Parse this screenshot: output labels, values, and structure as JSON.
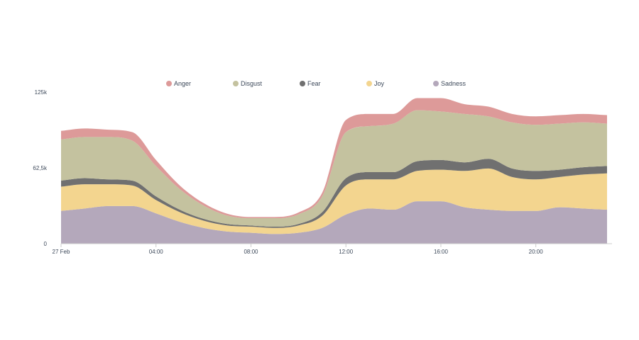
{
  "chart_data": {
    "type": "area",
    "stacked": true,
    "smooth": true,
    "title": "",
    "xlabel": "",
    "ylabel": "",
    "ylim": [
      0,
      125000
    ],
    "xlim_hours": [
      0,
      23
    ],
    "x_hours": [
      0,
      1,
      2,
      3,
      4,
      5,
      6,
      7,
      8,
      9,
      10,
      11,
      12,
      13,
      14,
      15,
      16,
      17,
      18,
      19,
      20,
      21,
      22,
      23
    ],
    "x_ticks": [
      {
        "hour": 0,
        "label": "27 Feb"
      },
      {
        "hour": 4,
        "label": "04:00"
      },
      {
        "hour": 8,
        "label": "08:00"
      },
      {
        "hour": 12,
        "label": "12:00"
      },
      {
        "hour": 16,
        "label": "16:00"
      },
      {
        "hour": 20,
        "label": "20:00"
      }
    ],
    "y_ticks": [
      {
        "value": 0,
        "label": "0"
      },
      {
        "value": 62500,
        "label": "62,5k"
      },
      {
        "value": 125000,
        "label": "125k"
      }
    ],
    "grid": false,
    "legend_position": "top-center",
    "series": [
      {
        "name": "Sadness",
        "color": "#b4a8bb",
        "values": [
          27000,
          29000,
          31000,
          31000,
          25000,
          18000,
          13000,
          10000,
          9000,
          8000,
          9000,
          13000,
          24000,
          29000,
          28000,
          35000,
          35000,
          30000,
          28000,
          27000,
          27000,
          30000,
          29000,
          28000
        ]
      },
      {
        "name": "Joy",
        "color": "#f3d58f",
        "values": [
          20000,
          20000,
          18000,
          17000,
          11000,
          8000,
          6000,
          5000,
          5000,
          5000,
          6000,
          10000,
          24000,
          24000,
          25000,
          25000,
          26000,
          30000,
          34000,
          28000,
          26000,
          25000,
          28000,
          30000
        ]
      },
      {
        "name": "Fear",
        "color": "#707070",
        "values": [
          5000,
          5000,
          4000,
          4000,
          3000,
          2000,
          1500,
          1200,
          1000,
          1000,
          1200,
          3000,
          6000,
          6000,
          6000,
          8000,
          8000,
          7000,
          8000,
          7000,
          7000,
          6000,
          6000,
          6000
        ]
      },
      {
        "name": "Disgust",
        "color": "#c4c29f",
        "values": [
          34000,
          34000,
          35000,
          33000,
          25000,
          17000,
          11000,
          7000,
          6000,
          7000,
          8000,
          13000,
          38000,
          38000,
          40000,
          42000,
          40000,
          40000,
          35000,
          38000,
          38000,
          38000,
          37000,
          35000
        ]
      },
      {
        "name": "Anger",
        "color": "#dd9a99",
        "values": [
          7000,
          7000,
          6000,
          7000,
          5000,
          3000,
          2000,
          1500,
          1000,
          1000,
          1500,
          3000,
          10000,
          10000,
          8000,
          10000,
          11000,
          8000,
          8000,
          7000,
          7000,
          7000,
          7000,
          7000
        ]
      }
    ]
  }
}
